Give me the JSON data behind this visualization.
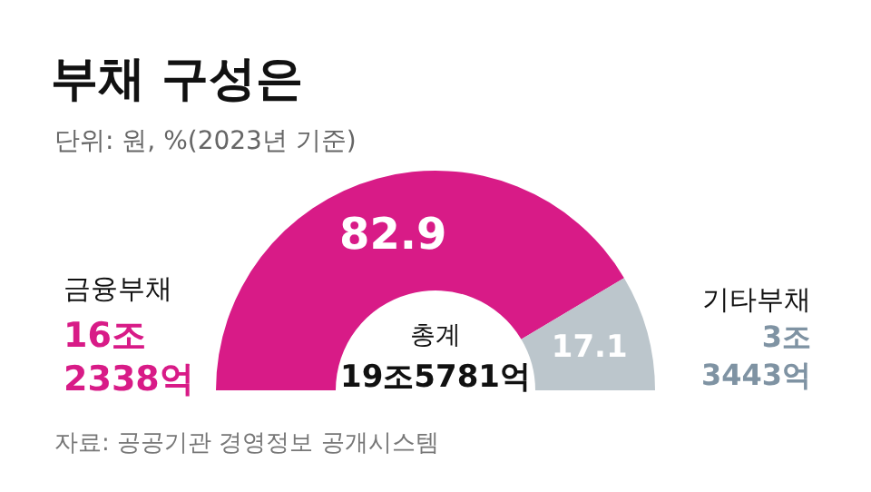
{
  "chart_data": {
    "type": "donut",
    "title": "부채 구성은",
    "subtitle": "단위: 원, %(2023년 기준)",
    "categories": [
      "금융부채",
      "기타부채"
    ],
    "values": [
      82.9,
      17.1
    ],
    "colors": [
      "#d81b87",
      "#bcc6cc"
    ],
    "data_labels": true,
    "annotations": [
      "총계",
      "19조5781억",
      "16조\n2338억",
      "3조\n3443억",
      "자료: 공공기관 경영정보 공개시스템"
    ]
  }
}
